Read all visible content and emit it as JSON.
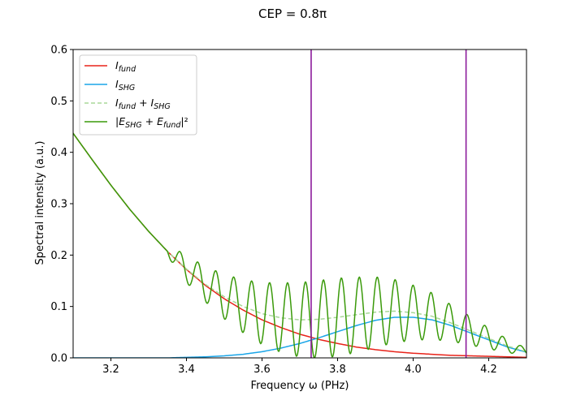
{
  "chart_data": {
    "type": "line",
    "title": "CEP = 0.8π",
    "xlabel": "Frequency ω (PHz)",
    "ylabel": "Spectral intensity (a.u.)",
    "xlim": [
      3.1,
      4.3
    ],
    "ylim": [
      0.0,
      0.6
    ],
    "x_ticks": [
      3.2,
      3.4,
      3.6,
      3.8,
      4.0,
      4.2
    ],
    "x_tick_labels": [
      "3.2",
      "3.4",
      "3.6",
      "3.8",
      "4.0",
      "4.2"
    ],
    "y_ticks": [
      0.0,
      0.1,
      0.2,
      0.3,
      0.4,
      0.5,
      0.6
    ],
    "y_tick_labels": [
      "0.0",
      "0.1",
      "0.2",
      "0.3",
      "0.4",
      "0.5",
      "0.6"
    ],
    "grid": false,
    "legend_position": "upper-left",
    "vertical_lines": [
      {
        "x": 3.73,
        "color": "#8B1A9B"
      },
      {
        "x": 4.14,
        "color": "#8B1A9B"
      }
    ],
    "series": [
      {
        "name": "I_fund",
        "legend_label": "I_fund",
        "color": "#e8231a",
        "style": "solid",
        "x": [
          3.1,
          3.15,
          3.2,
          3.25,
          3.3,
          3.35,
          3.4,
          3.45,
          3.5,
          3.55,
          3.6,
          3.65,
          3.7,
          3.75,
          3.8,
          3.85,
          3.9,
          3.95,
          4.0,
          4.05,
          4.1,
          4.15,
          4.2,
          4.25,
          4.3
        ],
        "y": [
          0.437,
          0.386,
          0.336,
          0.289,
          0.246,
          0.207,
          0.172,
          0.141,
          0.115,
          0.093,
          0.074,
          0.059,
          0.046,
          0.036,
          0.028,
          0.021,
          0.016,
          0.012,
          0.009,
          0.007,
          0.005,
          0.004,
          0.003,
          0.002,
          0.001
        ]
      },
      {
        "name": "I_SHG",
        "legend_label": "I_SHG",
        "color": "#1aa5e8",
        "style": "solid",
        "x": [
          3.1,
          3.15,
          3.2,
          3.25,
          3.3,
          3.35,
          3.4,
          3.45,
          3.5,
          3.55,
          3.6,
          3.65,
          3.7,
          3.75,
          3.8,
          3.85,
          3.9,
          3.95,
          4.0,
          4.05,
          4.1,
          4.15,
          4.2,
          4.25,
          4.3
        ],
        "y": [
          0.0,
          0.0,
          0.0,
          0.0,
          0.0,
          0.0,
          0.001,
          0.002,
          0.004,
          0.007,
          0.012,
          0.019,
          0.028,
          0.039,
          0.051,
          0.063,
          0.073,
          0.079,
          0.079,
          0.074,
          0.063,
          0.049,
          0.035,
          0.021,
          0.011
        ]
      },
      {
        "name": "I_fund + I_SHG",
        "legend_label": "I_fund + I_SHG",
        "color": "#a8d898",
        "style": "dashed",
        "x": [
          3.1,
          3.15,
          3.2,
          3.25,
          3.3,
          3.35,
          3.4,
          3.45,
          3.5,
          3.55,
          3.6,
          3.65,
          3.7,
          3.75,
          3.8,
          3.85,
          3.9,
          3.95,
          4.0,
          4.05,
          4.1,
          4.15,
          4.2,
          4.25,
          4.3
        ],
        "y": [
          0.437,
          0.386,
          0.336,
          0.289,
          0.246,
          0.207,
          0.173,
          0.143,
          0.119,
          0.1,
          0.086,
          0.078,
          0.074,
          0.075,
          0.079,
          0.084,
          0.089,
          0.091,
          0.088,
          0.081,
          0.068,
          0.053,
          0.038,
          0.023,
          0.012
        ]
      },
      {
        "name": "|E_SHG + E_fund|²",
        "legend_label": "|E_SHG + E_fund|²",
        "color": "#3a9a0a",
        "style": "solid",
        "interference": {
          "fringe_spacing": 0.0475,
          "fringe_ref_x": 3.715
        },
        "x": [
          3.1,
          3.2,
          3.25,
          3.3,
          3.35,
          3.4,
          3.45,
          3.51,
          3.56,
          3.61,
          3.66,
          3.715,
          3.74,
          3.81,
          3.86,
          3.915,
          3.96,
          4.015,
          4.06,
          4.14,
          4.19,
          4.24,
          4.3
        ],
        "y": [
          0.437,
          0.34,
          0.3,
          0.25,
          0.195,
          0.205,
          0.12,
          0.173,
          0.075,
          0.17,
          0.015,
          0.182,
          0.0,
          0.197,
          0.005,
          0.193,
          0.01,
          0.162,
          0.022,
          0.066,
          0.0,
          0.033,
          0.012
        ]
      }
    ]
  }
}
